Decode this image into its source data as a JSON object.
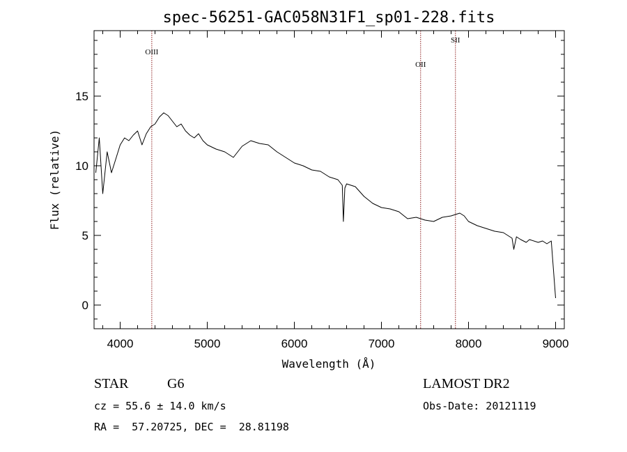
{
  "chart_data": {
    "type": "line",
    "title": "spec-56251-GAC058N31F1_sp01-228.fits",
    "xlabel": "Wavelength (Å)",
    "ylabel": "Flux (relative)",
    "xlim": [
      3700,
      9100
    ],
    "ylim": [
      -1.7,
      19.7
    ],
    "grid": false,
    "x_ticks": [
      4000,
      5000,
      6000,
      7000,
      8000,
      9000
    ],
    "y_ticks": [
      0,
      5,
      10,
      15
    ],
    "line_color": "#000000",
    "marker_color": "#8b1a1a",
    "lines": [
      {
        "name": "OIII",
        "wavelength": 4363
      },
      {
        "name": "OII",
        "wavelength": 7450
      },
      {
        "name": "SII",
        "wavelength": 7850
      }
    ],
    "series": [
      {
        "x": [
          3720,
          3760,
          3800,
          3850,
          3900,
          3950,
          4000,
          4050,
          4100,
          4150,
          4200,
          4250,
          4300,
          4350,
          4400,
          4450,
          4500,
          4550,
          4600,
          4650,
          4700,
          4750,
          4800,
          4850,
          4900,
          4950,
          5000,
          5100,
          5200,
          5300,
          5400,
          5500,
          5600,
          5700,
          5800,
          5900,
          6000,
          6100,
          6200,
          6300,
          6400,
          6500,
          6550,
          6563,
          6580,
          6600,
          6700,
          6800,
          6900,
          7000,
          7100,
          7200,
          7300,
          7400,
          7500,
          7600,
          7700,
          7800,
          7900,
          7950,
          8000,
          8100,
          8200,
          8300,
          8400,
          8500,
          8520,
          8550,
          8600,
          8662,
          8700,
          8800,
          8850,
          8900,
          8950,
          9000
        ],
        "y": [
          9.5,
          12.0,
          8.0,
          11.0,
          9.5,
          10.5,
          11.5,
          12.0,
          11.8,
          12.2,
          12.5,
          11.5,
          12.3,
          12.8,
          13.0,
          13.5,
          13.8,
          13.6,
          13.2,
          12.8,
          13.0,
          12.5,
          12.2,
          12.0,
          12.3,
          11.8,
          11.5,
          11.2,
          11.0,
          10.6,
          11.4,
          11.8,
          11.6,
          11.5,
          11.0,
          10.6,
          10.2,
          10.0,
          9.7,
          9.6,
          9.2,
          9.0,
          8.6,
          6.0,
          8.4,
          8.7,
          8.5,
          7.8,
          7.3,
          7.0,
          6.9,
          6.7,
          6.2,
          6.3,
          6.1,
          6.0,
          6.3,
          6.4,
          6.6,
          6.4,
          6.0,
          5.7,
          5.5,
          5.3,
          5.2,
          4.8,
          4.0,
          4.9,
          4.7,
          4.5,
          4.7,
          4.5,
          4.6,
          4.4,
          4.6,
          0.5
        ]
      }
    ]
  },
  "info": {
    "object_type": "STAR",
    "subclass": "G6",
    "survey": "LAMOST DR2",
    "cz": "cz = 55.6 ± 14.0 km/s",
    "obs_date": "Obs-Date: 20121119",
    "radec": "RA =  57.20725, DEC =  28.81198"
  }
}
